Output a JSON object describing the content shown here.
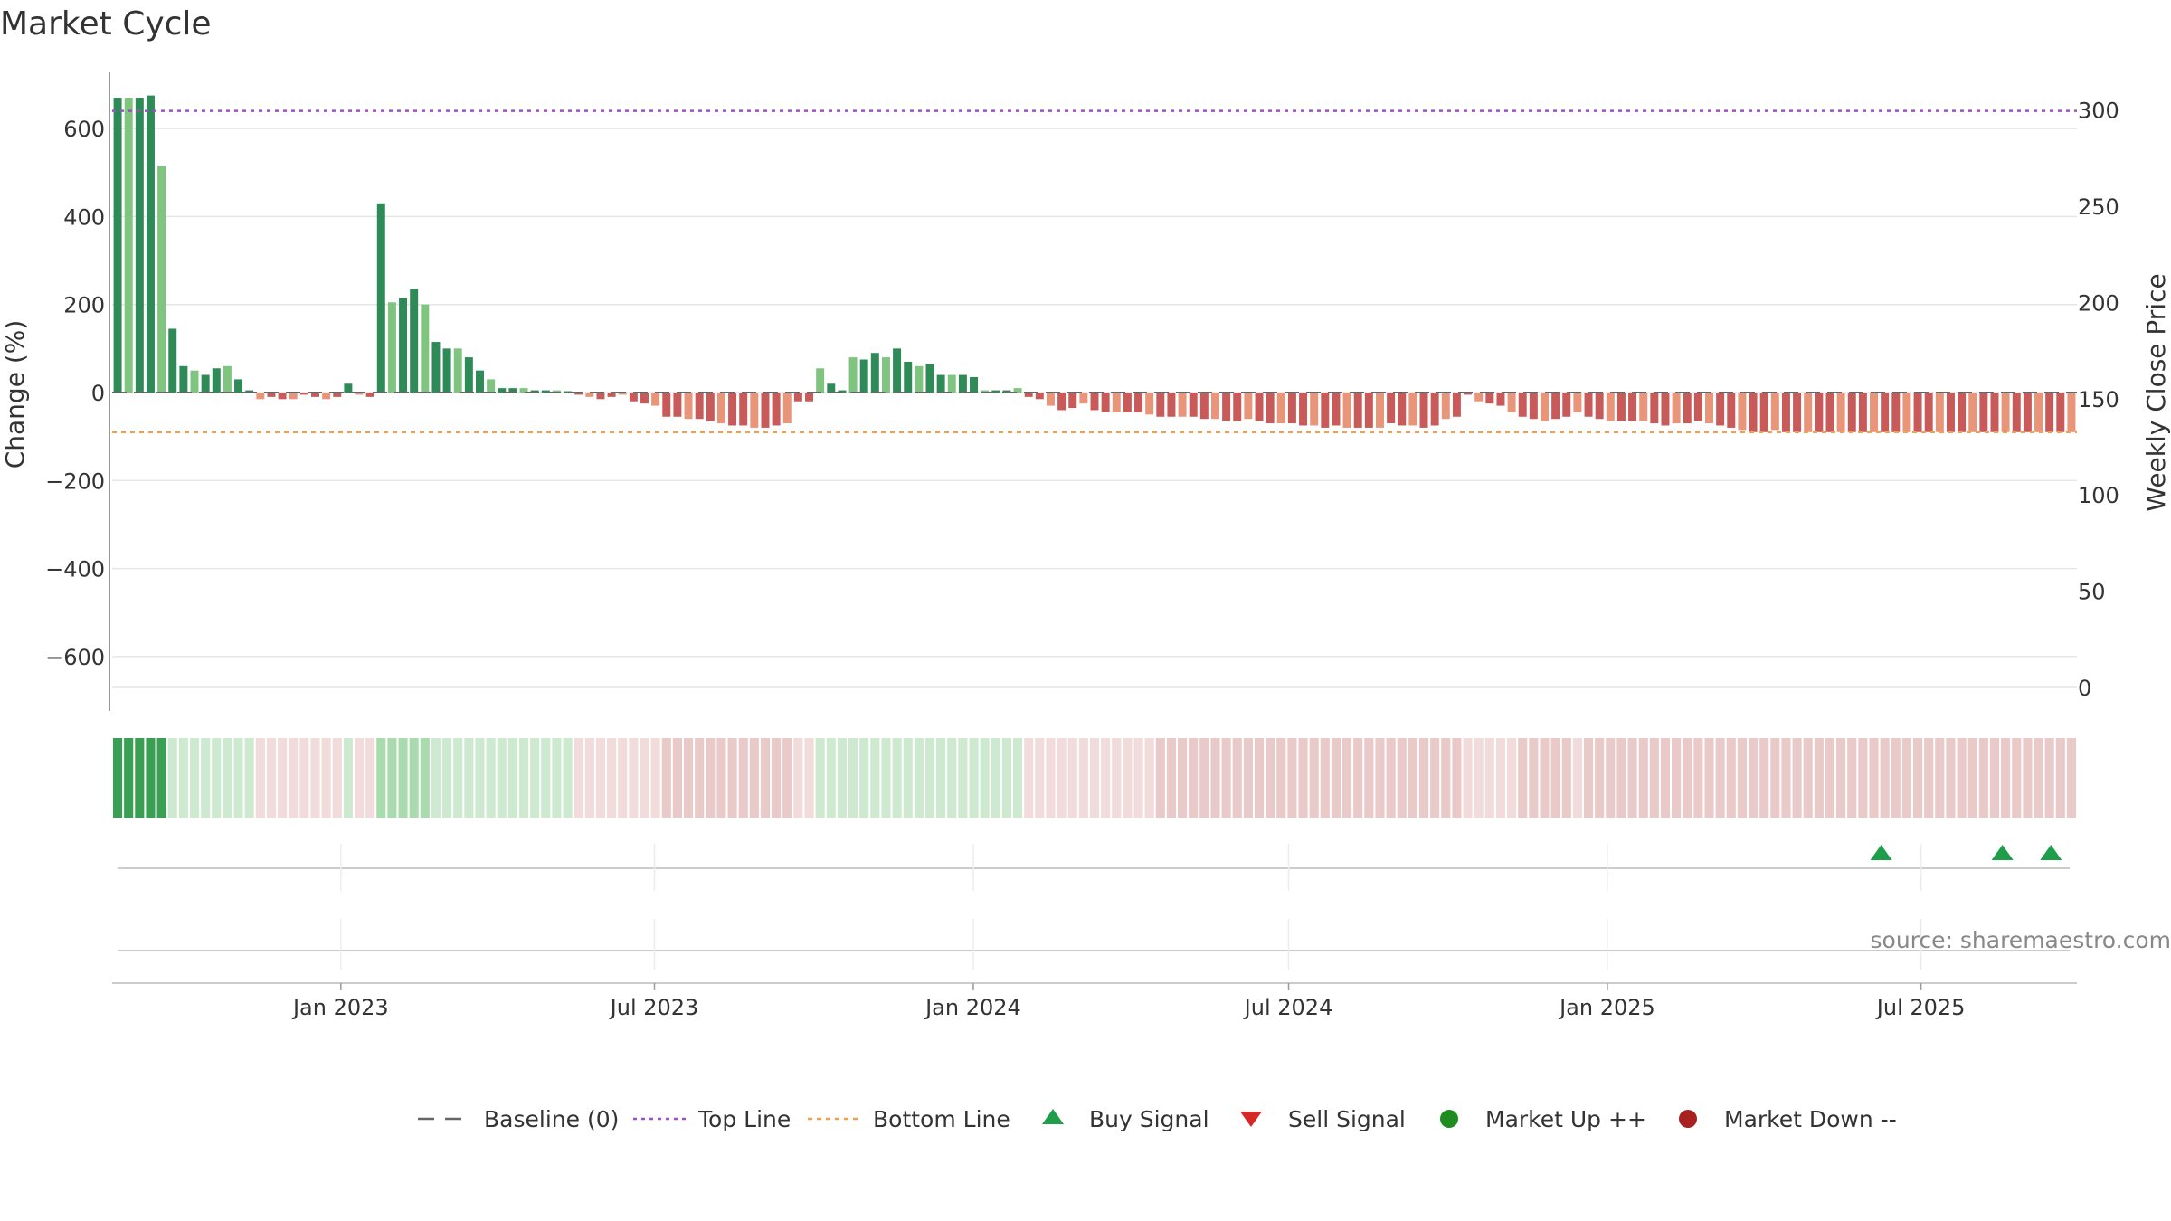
{
  "chart_data": {
    "type": "bar",
    "title": "Market Cycle",
    "ylabel": "Change (%)",
    "y2label": "Weekly Close Price",
    "ylim": [
      -680,
      720
    ],
    "y2lim": [
      -3,
      310
    ],
    "yticks": [
      600,
      400,
      200,
      0,
      -200,
      -400,
      -600
    ],
    "ytick_labels": [
      "600",
      "400",
      "200",
      "0",
      "−200",
      "−400",
      "−600"
    ],
    "y2ticks": [
      300,
      250,
      200,
      150,
      100,
      50,
      0
    ],
    "y2tick_labels": [
      "300",
      "250",
      "200",
      "150",
      "100",
      "50",
      "0"
    ],
    "x_start": "2022-08-22",
    "x_end": "2025-09-29",
    "xticks": [
      {
        "date": "2023-01-01",
        "label": "Jan 2023"
      },
      {
        "date": "2023-07-01",
        "label": "Jul 2023"
      },
      {
        "date": "2024-01-01",
        "label": "Jan 2024"
      },
      {
        "date": "2024-07-01",
        "label": "Jul 2024"
      },
      {
        "date": "2025-01-01",
        "label": "Jan 2025"
      },
      {
        "date": "2025-07-01",
        "label": "Jul 2025"
      }
    ],
    "baseline": 0,
    "top_line": 640,
    "bottom_line": -90,
    "series": [
      {
        "name": "Change (%)",
        "values": [
          670,
          670,
          670,
          675,
          515,
          145,
          60,
          50,
          40,
          55,
          60,
          30,
          5,
          -15,
          -10,
          -15,
          -15,
          -5,
          -10,
          -15,
          -10,
          20,
          -5,
          -10,
          430,
          205,
          215,
          235,
          200,
          115,
          100,
          100,
          80,
          50,
          30,
          10,
          10,
          10,
          5,
          5,
          5,
          3,
          -5,
          -10,
          -15,
          -10,
          -5,
          -20,
          -25,
          -30,
          -55,
          -55,
          -60,
          -60,
          -65,
          -70,
          -75,
          -75,
          -80,
          -80,
          -75,
          -70,
          -20,
          -20,
          55,
          20,
          5,
          80,
          75,
          90,
          80,
          100,
          70,
          60,
          65,
          40,
          40,
          40,
          35,
          5,
          5,
          5,
          10,
          -10,
          -15,
          -30,
          -40,
          -35,
          -25,
          -40,
          -45,
          -45,
          -45,
          -45,
          -50,
          -55,
          -55,
          -55,
          -55,
          -60,
          -60,
          -65,
          -65,
          -60,
          -65,
          -70,
          -70,
          -70,
          -75,
          -75,
          -80,
          -75,
          -80,
          -80,
          -80,
          -80,
          -70,
          -75,
          -75,
          -80,
          -75,
          -60,
          -55,
          -5,
          -20,
          -25,
          -30,
          -45,
          -55,
          -60,
          -65,
          -60,
          -55,
          -45,
          -55,
          -60,
          -65,
          -65,
          -65,
          -65,
          -70,
          -75,
          -70,
          -70,
          -65,
          -70,
          -75,
          -80,
          -85,
          -90,
          -90,
          -85,
          -90,
          -90,
          -90,
          -90,
          -90,
          -90,
          -90,
          -90,
          -90,
          -90,
          -90,
          -90,
          -90,
          -90,
          -90,
          -90,
          -90,
          -90,
          -90,
          -90,
          -90,
          -90,
          -90,
          -90,
          -90,
          -90,
          -90
        ]
      }
    ],
    "buy_signal_dates": [
      "2025-06-08",
      "2025-08-17",
      "2025-09-14"
    ],
    "sell_signal_dates": [],
    "source": "source: sharemaestro.com",
    "legend_position": "bottom-center",
    "legend": [
      "Baseline (0)",
      "Top Line",
      "Bottom Line",
      "Buy Signal",
      "Sell Signal",
      "Market Up ++",
      "Market Down --"
    ],
    "colors": {
      "up_strong": "#2e8b57",
      "up_light": "#7fc47f",
      "down_strong": "#c85a5a",
      "down_light": "#e8957a",
      "top_line": "#a04fc8",
      "bottom_line": "#f0a050",
      "baseline": "#666666",
      "buy": "#1e9e4a",
      "sell": "#d62728",
      "market_up": "#1e8c1e",
      "market_down": "#a82020"
    }
  }
}
